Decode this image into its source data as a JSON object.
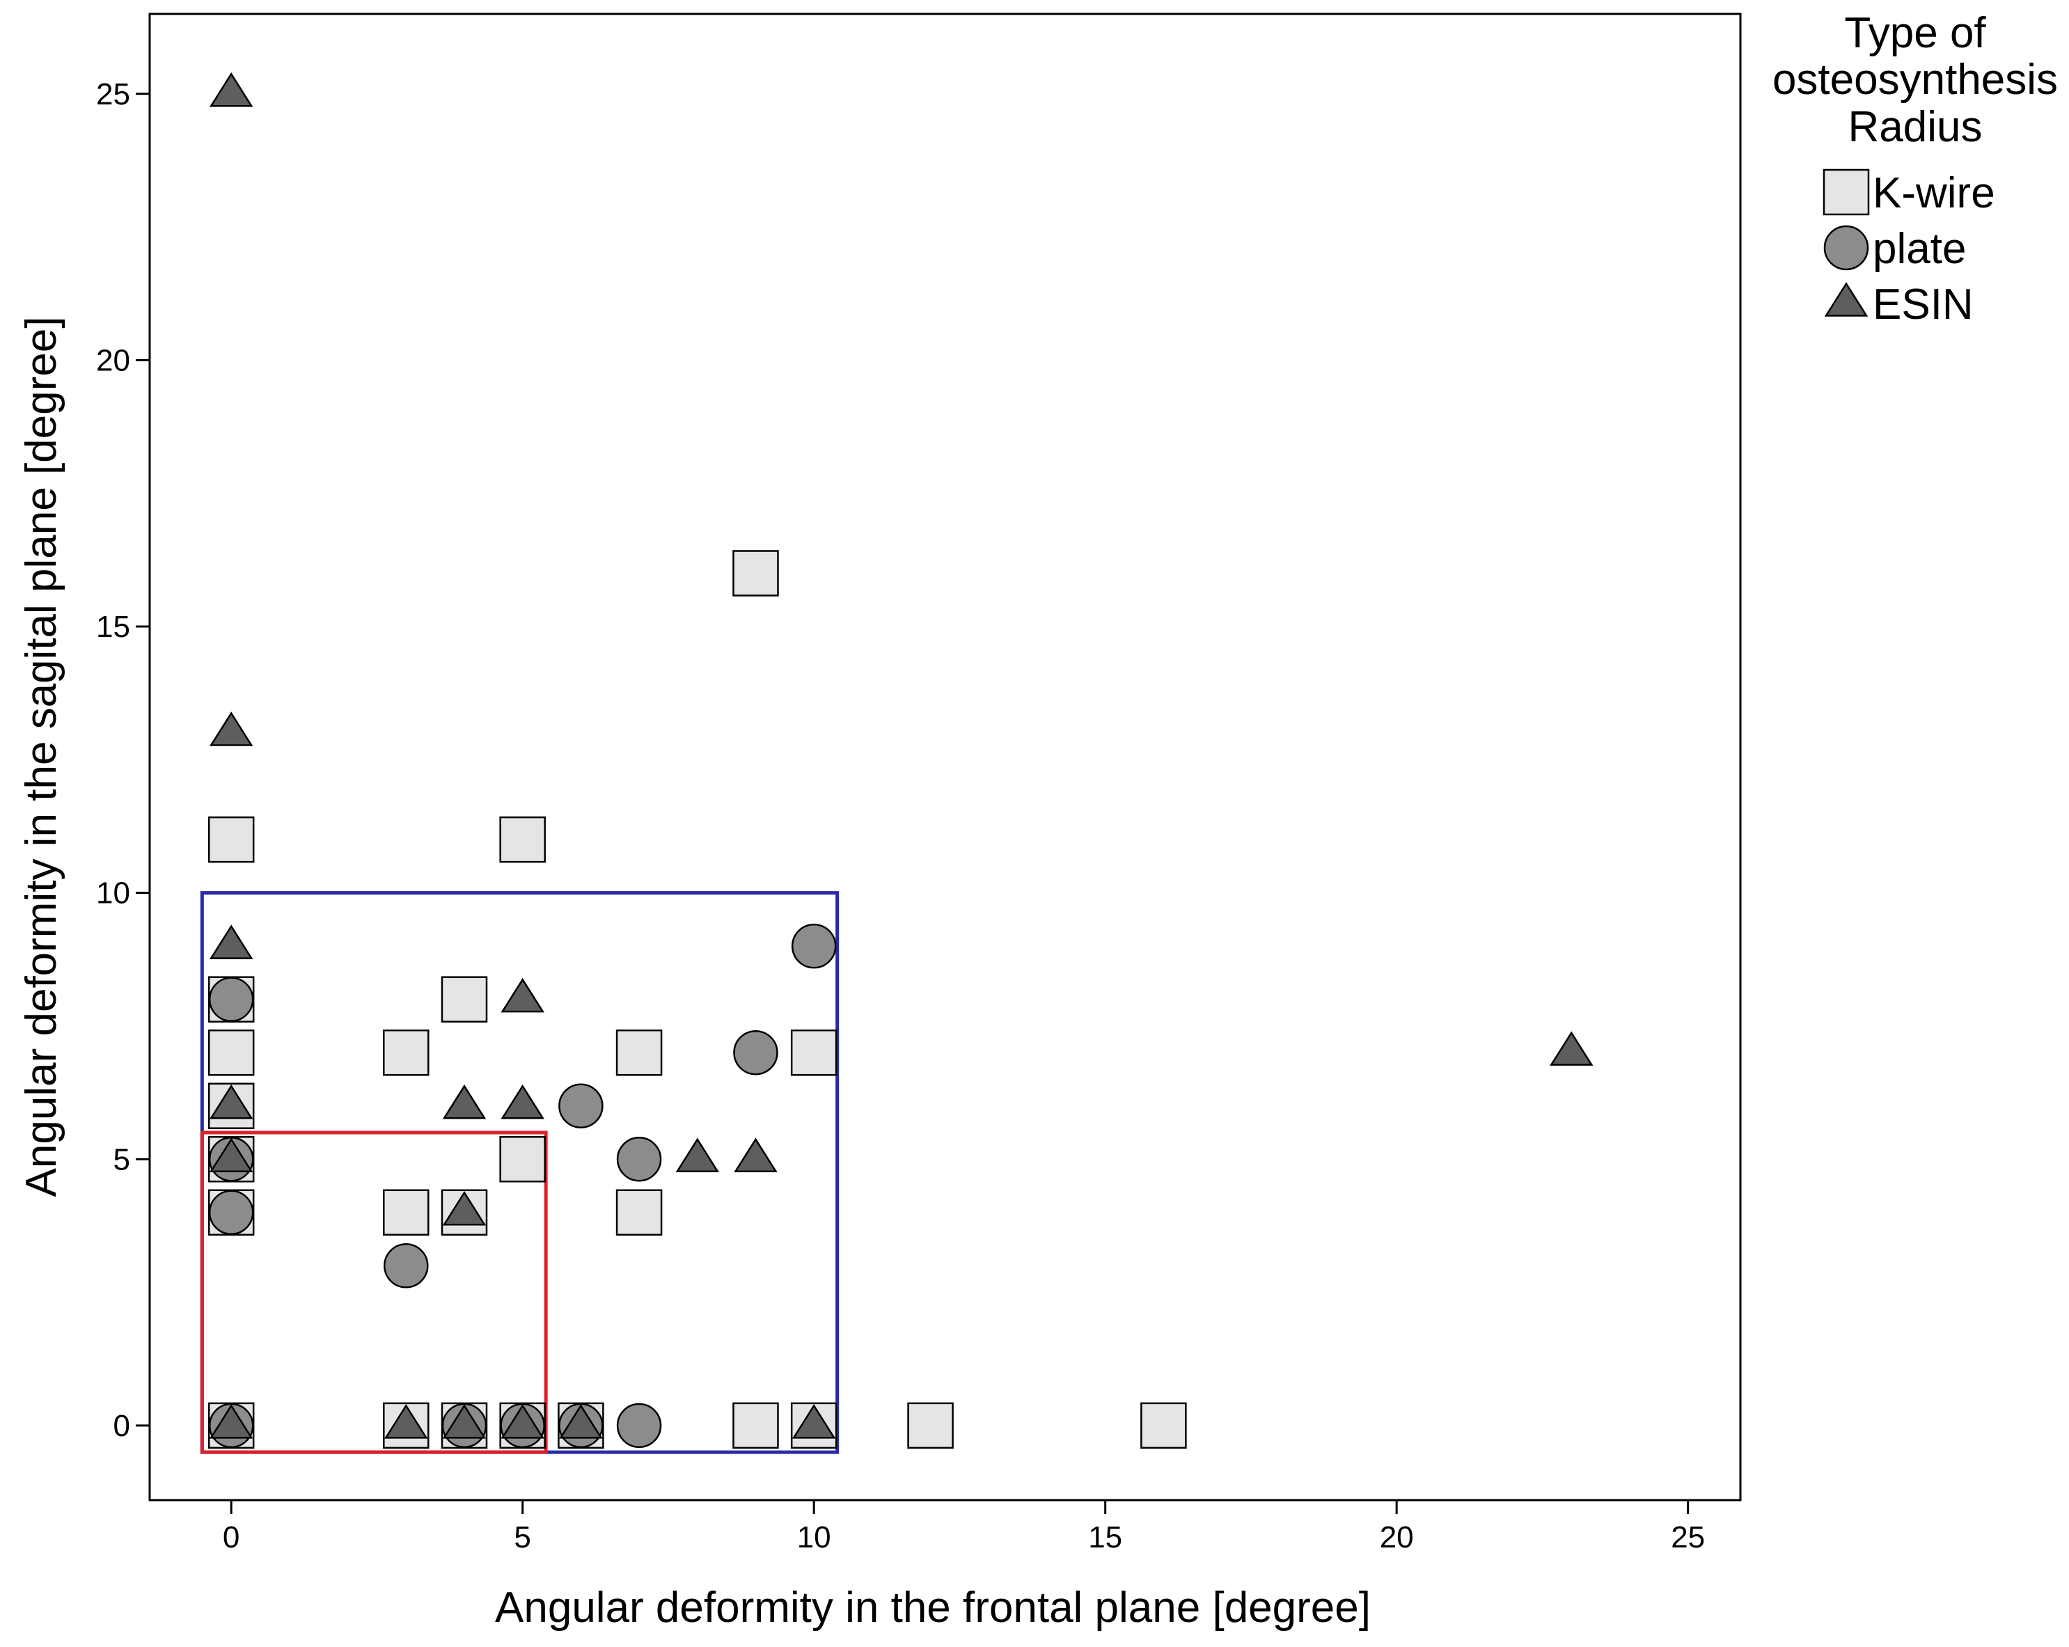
{
  "chart_data": {
    "type": "scatter",
    "xlabel": "Angular deformity in the frontal plane [degree]",
    "ylabel": "Angular deformity in the sagital plane [degree]",
    "xlim": [
      -1.4,
      25.9
    ],
    "ylim": [
      -1.4,
      26.5
    ],
    "xticks": [
      0,
      5,
      10,
      15,
      20,
      25
    ],
    "yticks": [
      0,
      5,
      10,
      15,
      20,
      25
    ],
    "grid": false,
    "legend": {
      "title_lines": [
        "Type of",
        "osteosynthesis",
        "Radius"
      ],
      "placement": "right"
    },
    "series": [
      {
        "name": "K-wire",
        "marker": "square",
        "color": "#e5e5e5",
        "points": [
          [
            0,
            11
          ],
          [
            0,
            8
          ],
          [
            0,
            7
          ],
          [
            0,
            6
          ],
          [
            0,
            5
          ],
          [
            0,
            4
          ],
          [
            0,
            0
          ],
          [
            3,
            7
          ],
          [
            3,
            4
          ],
          [
            3,
            0
          ],
          [
            4,
            8
          ],
          [
            4,
            4
          ],
          [
            4,
            0
          ],
          [
            5,
            11
          ],
          [
            5,
            5
          ],
          [
            5,
            0
          ],
          [
            6,
            0
          ],
          [
            7,
            7
          ],
          [
            7,
            4
          ],
          [
            9,
            16
          ],
          [
            9,
            0
          ],
          [
            10,
            7
          ],
          [
            10,
            0
          ],
          [
            12,
            0
          ],
          [
            16,
            0
          ]
        ]
      },
      {
        "name": "plate",
        "marker": "circle",
        "color": "#8c8c8c",
        "points": [
          [
            0,
            8
          ],
          [
            0,
            5
          ],
          [
            0,
            4
          ],
          [
            0,
            0
          ],
          [
            3,
            3
          ],
          [
            4,
            0
          ],
          [
            5,
            0
          ],
          [
            6,
            6
          ],
          [
            6,
            0
          ],
          [
            7,
            5
          ],
          [
            7,
            0
          ],
          [
            9,
            7
          ],
          [
            10,
            9
          ]
        ]
      },
      {
        "name": "ESIN",
        "marker": "triangle",
        "color": "#5e5e5e",
        "points": [
          [
            0,
            25
          ],
          [
            0,
            13
          ],
          [
            0,
            9
          ],
          [
            0,
            6
          ],
          [
            0,
            5
          ],
          [
            0,
            0
          ],
          [
            3,
            0
          ],
          [
            4,
            6
          ],
          [
            4,
            4
          ],
          [
            4,
            0
          ],
          [
            5,
            8
          ],
          [
            5,
            6
          ],
          [
            5,
            0
          ],
          [
            6,
            0
          ],
          [
            8,
            5
          ],
          [
            9,
            5
          ],
          [
            10,
            0
          ],
          [
            23,
            7
          ]
        ]
      }
    ],
    "annotations": [
      {
        "kind": "rectangle",
        "color": "#2a2aa8",
        "x_range": [
          -0.5,
          10.4
        ],
        "y_range": [
          -0.5,
          10
        ]
      },
      {
        "kind": "rectangle",
        "color": "#d8232a",
        "x_range": [
          -0.5,
          5.4
        ],
        "y_range": [
          -0.5,
          5.5
        ]
      }
    ]
  }
}
